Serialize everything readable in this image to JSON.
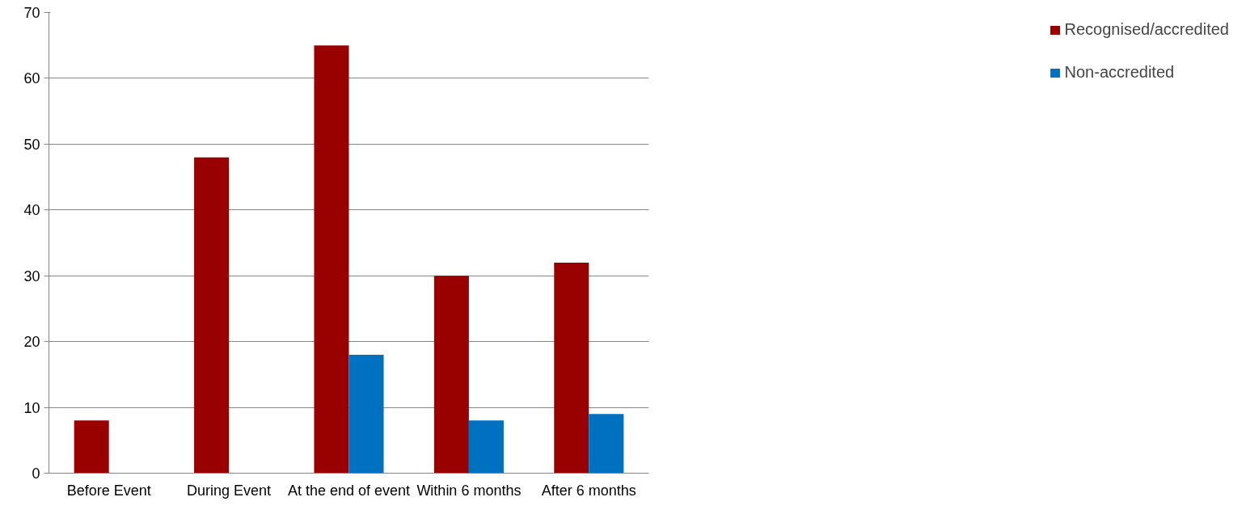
{
  "chart_data": {
    "type": "bar",
    "categories": [
      "Before Event",
      "During Event",
      "At the end of event",
      "Within 6 months",
      "After 6 months"
    ],
    "series": [
      {
        "name": "Recognised/accredited",
        "color": "#990000",
        "values": [
          8,
          48,
          65,
          30,
          32
        ]
      },
      {
        "name": "Non-accredited",
        "color": "#0070c0",
        "values": [
          null,
          null,
          18,
          8,
          9
        ]
      }
    ],
    "ylim": [
      0,
      70
    ],
    "yticks": [
      0,
      10,
      20,
      30,
      40,
      50,
      60,
      70
    ],
    "grid": "y",
    "legend": "right"
  }
}
